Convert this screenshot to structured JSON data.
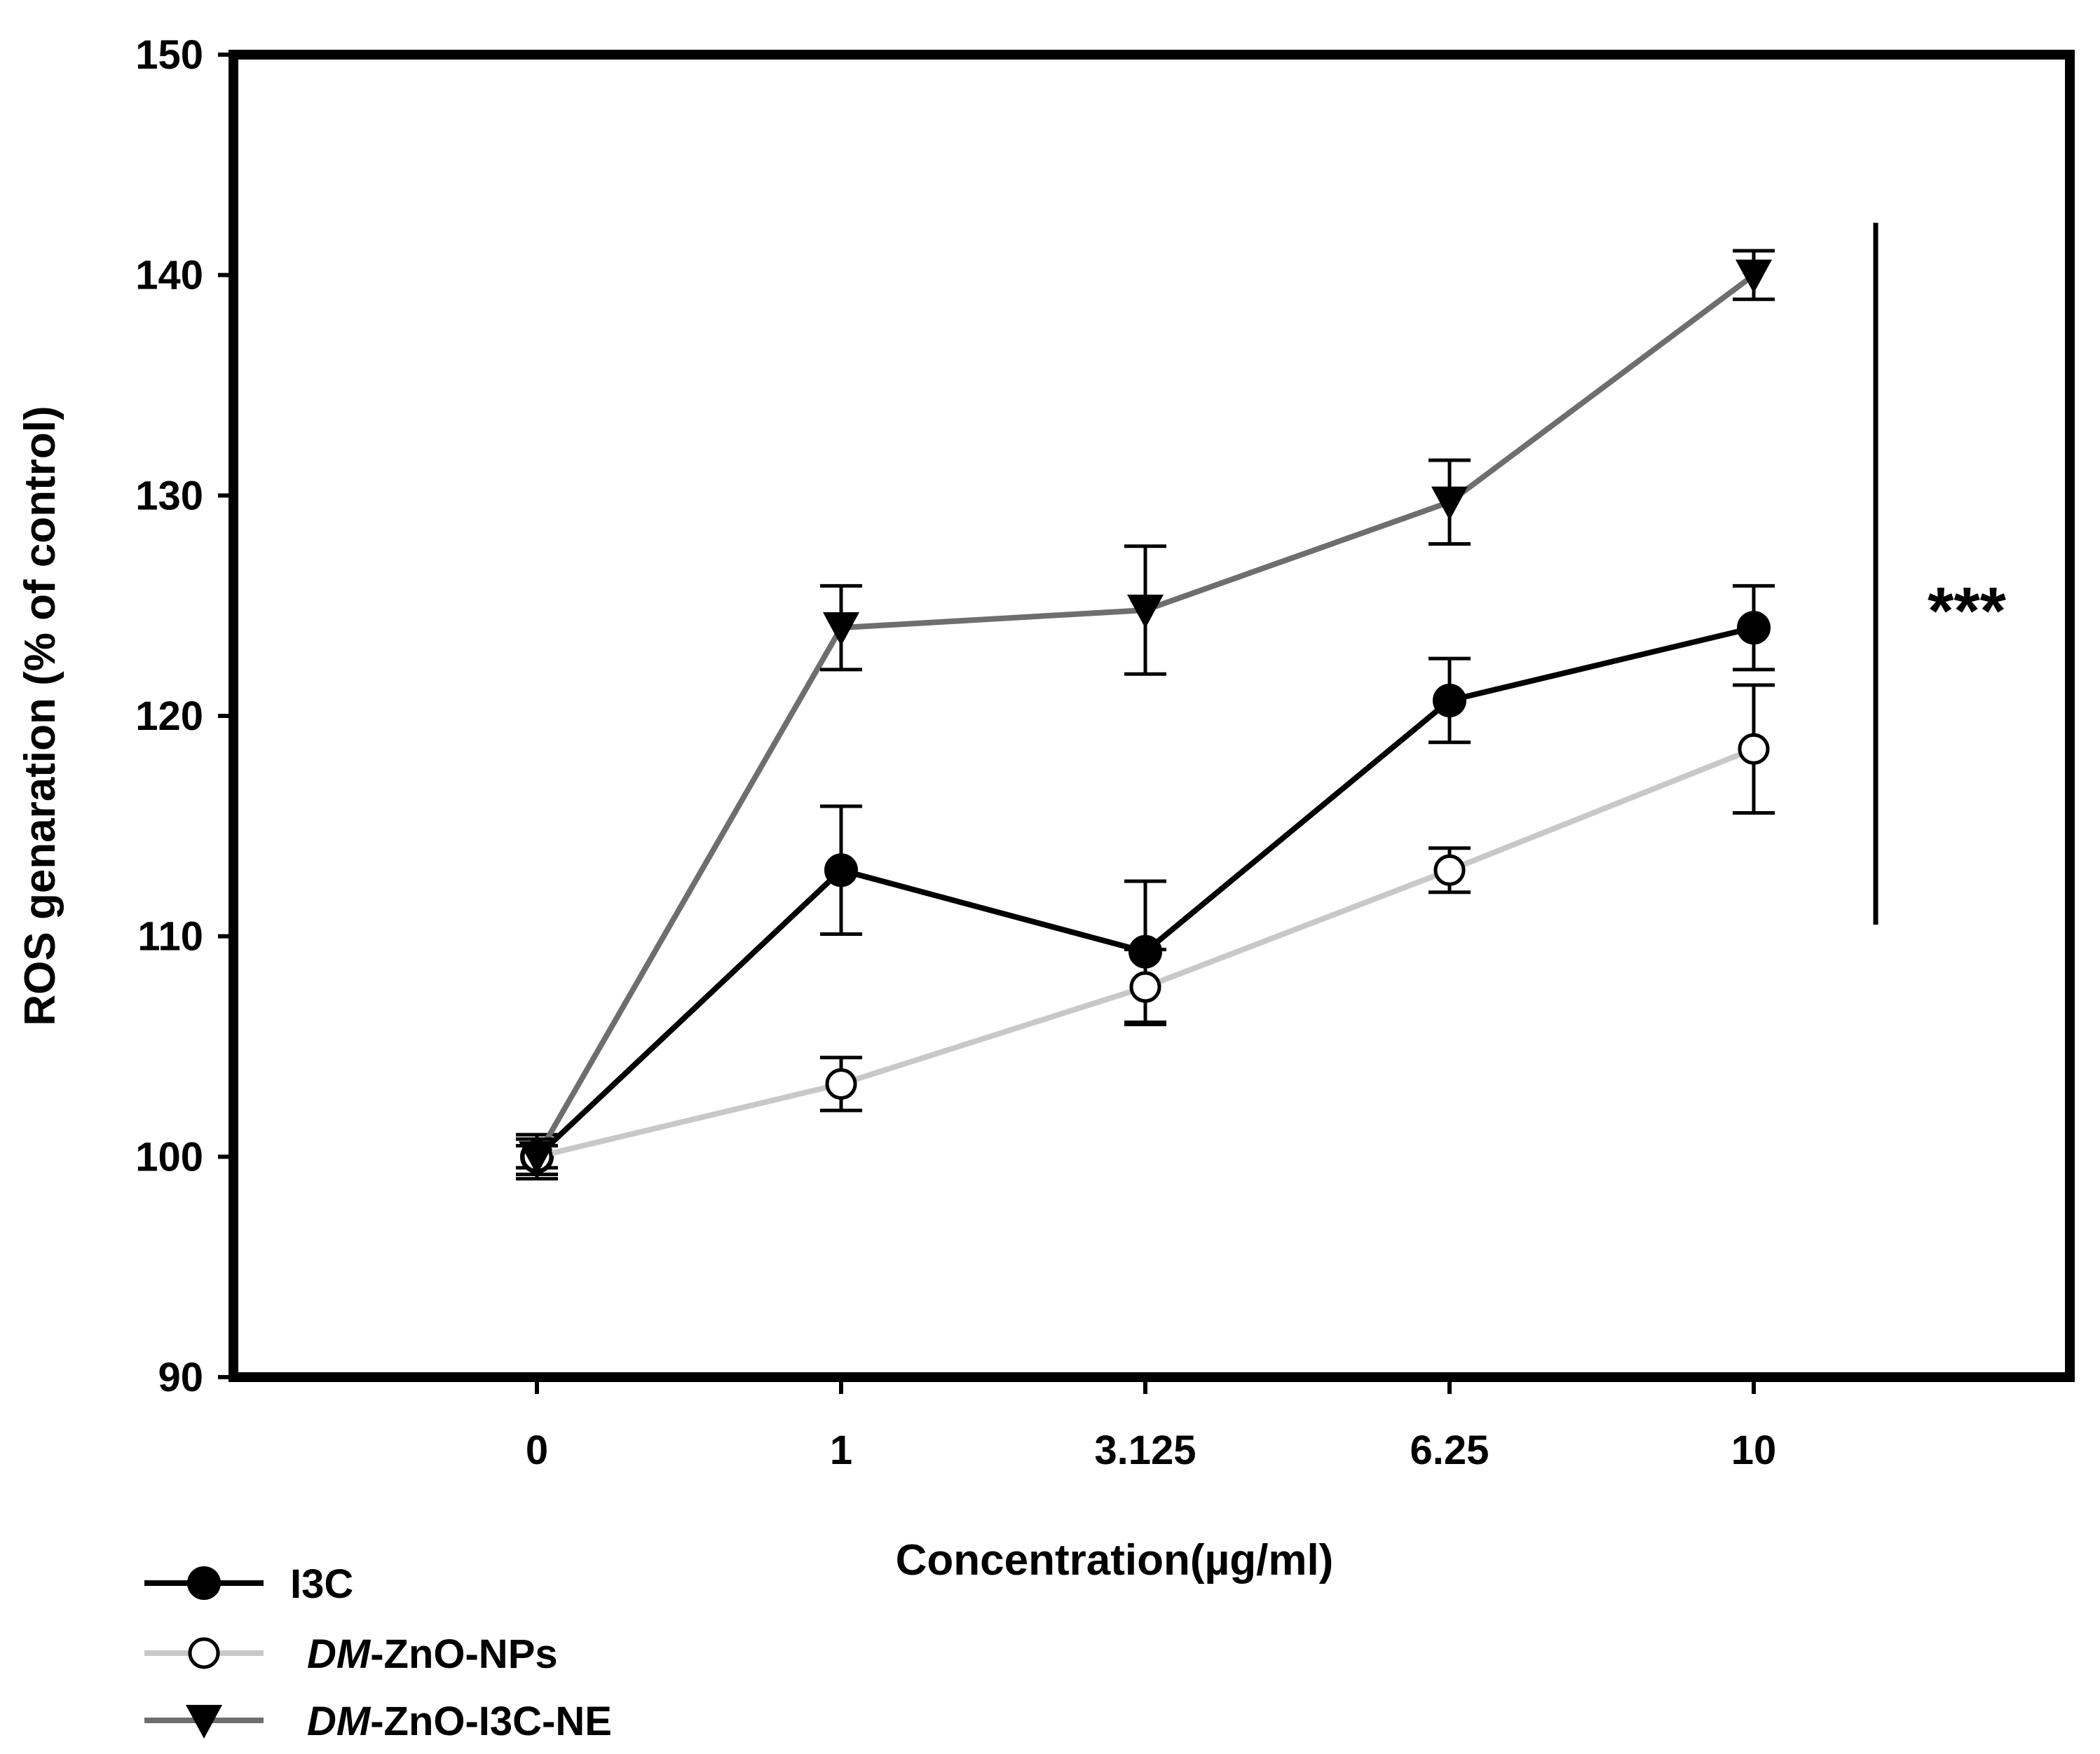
{
  "chart_data": {
    "type": "line",
    "title": "",
    "xlabel": "Concentration(µg/ml)",
    "ylabel": "ROS genaration (% of control)",
    "categories": [
      "0",
      "1",
      "3.125",
      "6.25",
      "10"
    ],
    "ylim": [
      90,
      150
    ],
    "yticks": [
      "90",
      "100",
      "110",
      "120",
      "130",
      "140",
      "150"
    ],
    "grid": false,
    "legend_position": "bottom-left",
    "significance_label": "***",
    "series": [
      {
        "name": "I3C",
        "legend_parts": [
          "",
          "I3C"
        ],
        "color": "#000000",
        "marker": "filled-circle",
        "values": [
          100,
          113,
          109.3,
          120.7,
          124
        ],
        "errors": [
          1,
          2.9,
          3.2,
          1.9,
          1.9
        ]
      },
      {
        "name": "DM-ZnO-NPs",
        "legend_parts": [
          "DM",
          "-ZnO-NPs"
        ],
        "color": "#c8c8c8",
        "marker": "open-circle",
        "values": [
          100,
          103.3,
          107.7,
          113,
          118.5
        ],
        "errors": [
          0.5,
          1.2,
          1.7,
          1,
          2.9
        ]
      },
      {
        "name": "DM-ZnO-I3C-NE",
        "legend_parts": [
          "DM",
          "-ZnO-I3C-NE"
        ],
        "color": "#6e6e6e",
        "marker": "filled-triangle-down",
        "values": [
          100,
          124,
          124.8,
          129.7,
          140
        ],
        "errors": [
          0.8,
          1.9,
          2.9,
          1.9,
          1.1
        ]
      }
    ]
  }
}
